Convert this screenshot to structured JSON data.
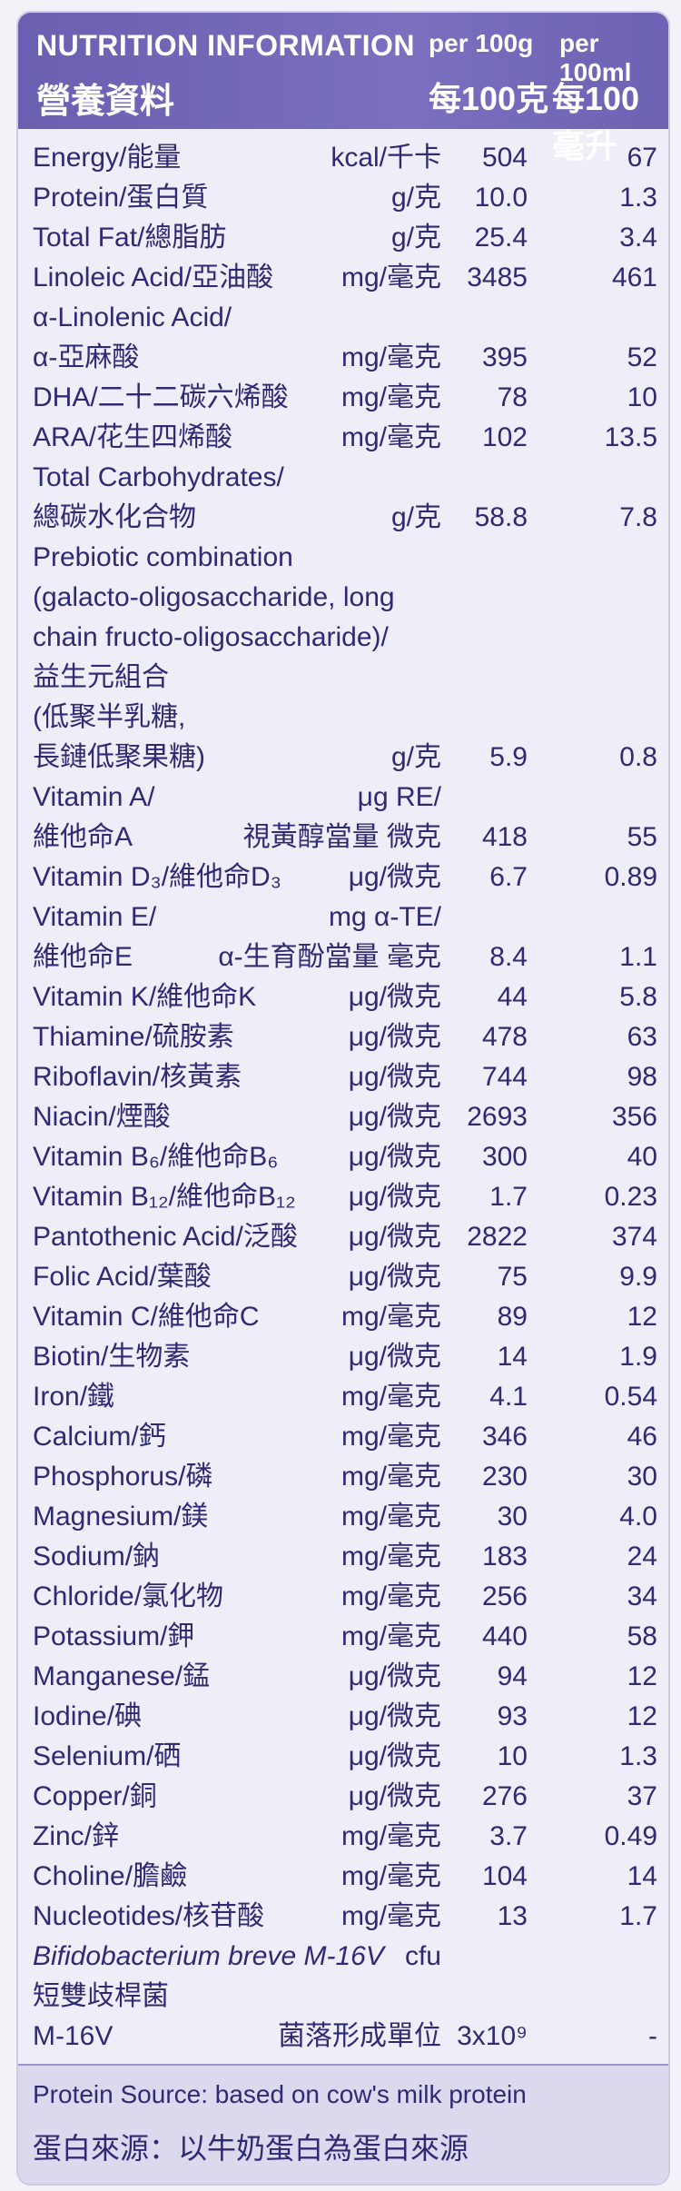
{
  "header": {
    "title_en": "NUTRITION INFORMATION",
    "title_zh": "營養資料",
    "col1_en": "per 100g",
    "col2_en": "per 100ml",
    "col1_zh": "每100克",
    "col2_zh": "每100毫升"
  },
  "rows": [
    {
      "name": "Energy/能量",
      "unit": "kcal/千卡",
      "v1": "504",
      "v2": "67"
    },
    {
      "name": "Protein/蛋白質",
      "unit": "g/克",
      "v1": "10.0",
      "v2": "1.3"
    },
    {
      "name": "Total Fat/總脂肪",
      "unit": "g/克",
      "v1": "25.4",
      "v2": "3.4"
    },
    {
      "name": "Linoleic Acid/亞油酸",
      "unit": "mg/毫克",
      "v1": "3485",
      "v2": "461"
    },
    {
      "name": "α-Linolenic Acid/",
      "unit": "",
      "v1": "",
      "v2": ""
    },
    {
      "name": "α-亞麻酸",
      "unit": "mg/毫克",
      "v1": "395",
      "v2": "52"
    },
    {
      "name": "DHA/二十二碳六烯酸",
      "unit": "mg/毫克",
      "v1": "78",
      "v2": "10"
    },
    {
      "name": "ARA/花生四烯酸",
      "unit": "mg/毫克",
      "v1": "102",
      "v2": "13.5"
    },
    {
      "name": "Total Carbohydrates/",
      "unit": "",
      "v1": "",
      "v2": ""
    },
    {
      "name": "總碳水化合物",
      "unit": "g/克",
      "v1": "58.8",
      "v2": "7.8"
    },
    {
      "name": "Prebiotic combination",
      "unit": "",
      "v1": "",
      "v2": ""
    },
    {
      "name": "(galacto-oligosaccharide, long",
      "unit": "",
      "v1": "",
      "v2": ""
    },
    {
      "name": "chain fructo-oligosaccharide)/",
      "unit": "",
      "v1": "",
      "v2": ""
    },
    {
      "name": "益生元組合",
      "unit": "",
      "v1": "",
      "v2": ""
    },
    {
      "name": "(低聚半乳糖,",
      "unit": "",
      "v1": "",
      "v2": ""
    },
    {
      "name": "長鏈低聚果糖)",
      "unit": "g/克",
      "v1": "5.9",
      "v2": "0.8"
    },
    {
      "name": "Vitamin A/",
      "unit": "μg RE/",
      "v1": "",
      "v2": ""
    },
    {
      "name": "維他命A",
      "unit": "視黃醇當量 微克",
      "v1": "418",
      "v2": "55"
    },
    {
      "name": "Vitamin D₃/維他命D₃",
      "unit": "μg/微克",
      "v1": "6.7",
      "v2": "0.89"
    },
    {
      "name": "Vitamin E/",
      "unit": "mg α-TE/",
      "v1": "",
      "v2": ""
    },
    {
      "name": "維他命E",
      "unit": "α-生育酚當量 毫克",
      "v1": "8.4",
      "v2": "1.1"
    },
    {
      "name": "Vitamin K/維他命K",
      "unit": "μg/微克",
      "v1": "44",
      "v2": "5.8"
    },
    {
      "name": "Thiamine/硫胺素",
      "unit": "μg/微克",
      "v1": "478",
      "v2": "63"
    },
    {
      "name": "Riboflavin/核黃素",
      "unit": "μg/微克",
      "v1": "744",
      "v2": "98"
    },
    {
      "name": "Niacin/煙酸",
      "unit": "μg/微克",
      "v1": "2693",
      "v2": "356"
    },
    {
      "name": "Vitamin B₆/維他命B₆",
      "unit": "μg/微克",
      "v1": "300",
      "v2": "40"
    },
    {
      "name": "Vitamin B₁₂/維他命B₁₂",
      "unit": "μg/微克",
      "v1": "1.7",
      "v2": "0.23"
    },
    {
      "name": "Pantothenic Acid/泛酸",
      "unit": "μg/微克",
      "v1": "2822",
      "v2": "374"
    },
    {
      "name": "Folic Acid/葉酸",
      "unit": "μg/微克",
      "v1": "75",
      "v2": "9.9"
    },
    {
      "name": "Vitamin C/維他命C",
      "unit": "mg/毫克",
      "v1": "89",
      "v2": "12"
    },
    {
      "name": "Biotin/生物素",
      "unit": "μg/微克",
      "v1": "14",
      "v2": "1.9"
    },
    {
      "name": "Iron/鐵",
      "unit": "mg/毫克",
      "v1": "4.1",
      "v2": "0.54"
    },
    {
      "name": "Calcium/鈣",
      "unit": "mg/毫克",
      "v1": "346",
      "v2": "46"
    },
    {
      "name": "Phosphorus/磷",
      "unit": "mg/毫克",
      "v1": "230",
      "v2": "30"
    },
    {
      "name": "Magnesium/鎂",
      "unit": "mg/毫克",
      "v1": "30",
      "v2": "4.0"
    },
    {
      "name": "Sodium/鈉",
      "unit": "mg/毫克",
      "v1": "183",
      "v2": "24"
    },
    {
      "name": "Chloride/氯化物",
      "unit": "mg/毫克",
      "v1": "256",
      "v2": "34"
    },
    {
      "name": "Potassium/鉀",
      "unit": "mg/毫克",
      "v1": "440",
      "v2": "58"
    },
    {
      "name": "Manganese/錳",
      "unit": "μg/微克",
      "v1": "94",
      "v2": "12"
    },
    {
      "name": "Iodine/碘",
      "unit": "μg/微克",
      "v1": "93",
      "v2": "12"
    },
    {
      "name": "Selenium/硒",
      "unit": "μg/微克",
      "v1": "10",
      "v2": "1.3"
    },
    {
      "name": "Copper/銅",
      "unit": "μg/微克",
      "v1": "276",
      "v2": "37"
    },
    {
      "name": "Zinc/鋅",
      "unit": "mg/毫克",
      "v1": "3.7",
      "v2": "0.49"
    },
    {
      "name": "Choline/膽鹼",
      "unit": "mg/毫克",
      "v1": "104",
      "v2": "14"
    },
    {
      "name": "Nucleotides/核苷酸",
      "unit": "mg/毫克",
      "v1": "13",
      "v2": "1.7"
    },
    {
      "name": "Bifidobacterium breve M-16V",
      "unit": "cfu",
      "v1": "",
      "v2": "",
      "italic": true
    },
    {
      "name": "短雙歧桿菌",
      "unit": "",
      "v1": "",
      "v2": ""
    },
    {
      "name": "M-16V",
      "unit": "菌落形成單位",
      "v1": "3x10⁹",
      "v2": "-"
    }
  ],
  "footer": {
    "source_en": "Protein Source: based on cow's milk protein",
    "source_zh": "蛋白來源：以牛奶蛋白為蛋白來源"
  }
}
